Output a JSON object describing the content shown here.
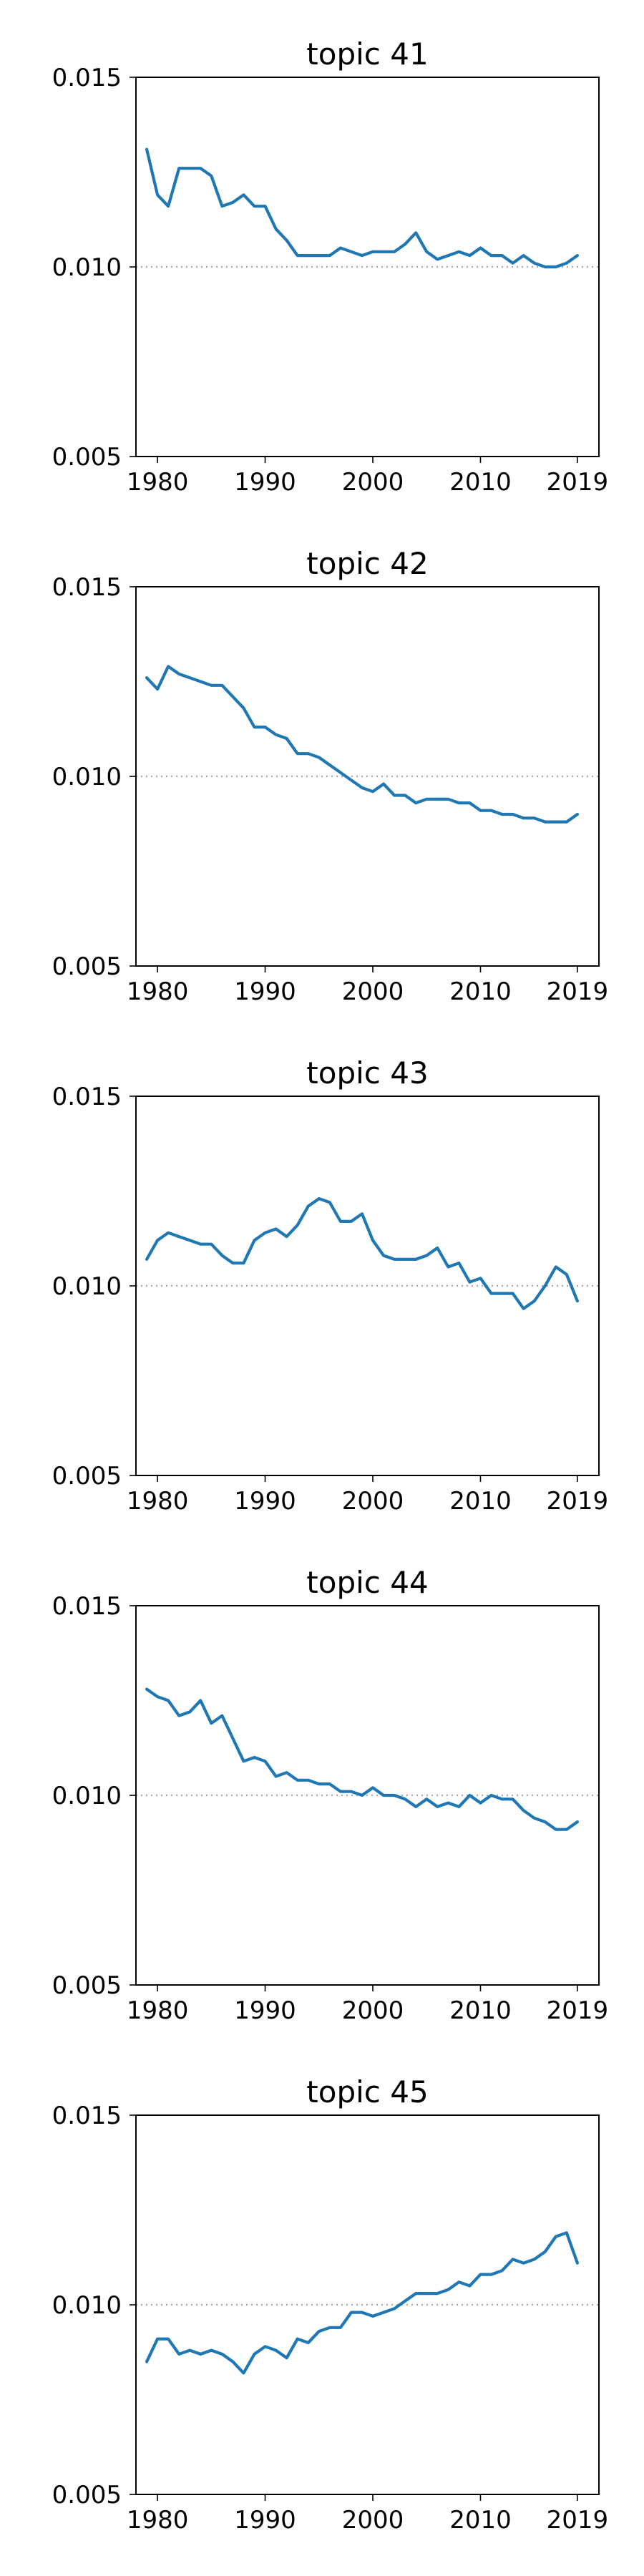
{
  "chart_data": [
    {
      "type": "line",
      "title": "topic 41",
      "xlim": [
        1978,
        2021
      ],
      "ylim": [
        0.005,
        0.015
      ],
      "xticks": [
        1980,
        1990,
        2000,
        2010,
        2019
      ],
      "yticks": [
        "0.005",
        "0.010",
        "0.015"
      ],
      "reference_line": 0.01,
      "grid": false,
      "color": "#1f77b4",
      "x": [
        1979,
        1980,
        1981,
        1982,
        1983,
        1984,
        1985,
        1986,
        1987,
        1988,
        1989,
        1990,
        1991,
        1992,
        1993,
        1994,
        1995,
        1996,
        1997,
        1998,
        1999,
        2000,
        2001,
        2002,
        2003,
        2004,
        2005,
        2006,
        2007,
        2008,
        2009,
        2010,
        2011,
        2012,
        2013,
        2014,
        2015,
        2016,
        2017,
        2018,
        2019
      ],
      "values": [
        0.0131,
        0.0119,
        0.0116,
        0.0126,
        0.0126,
        0.0126,
        0.0124,
        0.0116,
        0.0117,
        0.0119,
        0.0116,
        0.0116,
        0.011,
        0.0107,
        0.0103,
        0.0103,
        0.0103,
        0.0103,
        0.0105,
        0.0104,
        0.0103,
        0.0104,
        0.0104,
        0.0104,
        0.0106,
        0.0109,
        0.0104,
        0.0102,
        0.0103,
        0.0104,
        0.0103,
        0.0105,
        0.0103,
        0.0103,
        0.0101,
        0.0103,
        0.0101,
        0.01,
        0.01,
        0.0101,
        0.0103
      ]
    },
    {
      "type": "line",
      "title": "topic 42",
      "xlim": [
        1978,
        2021
      ],
      "ylim": [
        0.005,
        0.015
      ],
      "xticks": [
        1980,
        1990,
        2000,
        2010,
        2019
      ],
      "yticks": [
        "0.005",
        "0.010",
        "0.015"
      ],
      "reference_line": 0.01,
      "grid": false,
      "color": "#1f77b4",
      "x": [
        1979,
        1980,
        1981,
        1982,
        1983,
        1984,
        1985,
        1986,
        1987,
        1988,
        1989,
        1990,
        1991,
        1992,
        1993,
        1994,
        1995,
        1996,
        1997,
        1998,
        1999,
        2000,
        2001,
        2002,
        2003,
        2004,
        2005,
        2006,
        2007,
        2008,
        2009,
        2010,
        2011,
        2012,
        2013,
        2014,
        2015,
        2016,
        2017,
        2018,
        2019
      ],
      "values": [
        0.0126,
        0.0123,
        0.0129,
        0.0127,
        0.0126,
        0.0125,
        0.0124,
        0.0124,
        0.0121,
        0.0118,
        0.0113,
        0.0113,
        0.0111,
        0.011,
        0.0106,
        0.0106,
        0.0105,
        0.0103,
        0.0101,
        0.0099,
        0.0097,
        0.0096,
        0.0098,
        0.0095,
        0.0095,
        0.0093,
        0.0094,
        0.0094,
        0.0094,
        0.0093,
        0.0093,
        0.0091,
        0.0091,
        0.009,
        0.009,
        0.0089,
        0.0089,
        0.0088,
        0.0088,
        0.0088,
        0.009
      ]
    },
    {
      "type": "line",
      "title": "topic 43",
      "xlim": [
        1978,
        2021
      ],
      "ylim": [
        0.005,
        0.015
      ],
      "xticks": [
        1980,
        1990,
        2000,
        2010,
        2019
      ],
      "yticks": [
        "0.005",
        "0.010",
        "0.015"
      ],
      "reference_line": 0.01,
      "grid": false,
      "color": "#1f77b4",
      "x": [
        1979,
        1980,
        1981,
        1982,
        1983,
        1984,
        1985,
        1986,
        1987,
        1988,
        1989,
        1990,
        1991,
        1992,
        1993,
        1994,
        1995,
        1996,
        1997,
        1998,
        1999,
        2000,
        2001,
        2002,
        2003,
        2004,
        2005,
        2006,
        2007,
        2008,
        2009,
        2010,
        2011,
        2012,
        2013,
        2014,
        2015,
        2016,
        2017,
        2018,
        2019
      ],
      "values": [
        0.0107,
        0.0112,
        0.0114,
        0.0113,
        0.0112,
        0.0111,
        0.0111,
        0.0108,
        0.0106,
        0.0106,
        0.0112,
        0.0114,
        0.0115,
        0.0113,
        0.0116,
        0.0121,
        0.0123,
        0.0122,
        0.0117,
        0.0117,
        0.0119,
        0.0112,
        0.0108,
        0.0107,
        0.0107,
        0.0107,
        0.0108,
        0.011,
        0.0105,
        0.0106,
        0.0101,
        0.0102,
        0.0098,
        0.0098,
        0.0098,
        0.0094,
        0.0096,
        0.01,
        0.0105,
        0.0103,
        0.0096
      ]
    },
    {
      "type": "line",
      "title": "topic 44",
      "xlim": [
        1978,
        2021
      ],
      "ylim": [
        0.005,
        0.015
      ],
      "xticks": [
        1980,
        1990,
        2000,
        2010,
        2019
      ],
      "yticks": [
        "0.005",
        "0.010",
        "0.015"
      ],
      "reference_line": 0.01,
      "grid": false,
      "color": "#1f77b4",
      "x": [
        1979,
        1980,
        1981,
        1982,
        1983,
        1984,
        1985,
        1986,
        1987,
        1988,
        1989,
        1990,
        1991,
        1992,
        1993,
        1994,
        1995,
        1996,
        1997,
        1998,
        1999,
        2000,
        2001,
        2002,
        2003,
        2004,
        2005,
        2006,
        2007,
        2008,
        2009,
        2010,
        2011,
        2012,
        2013,
        2014,
        2015,
        2016,
        2017,
        2018,
        2019
      ],
      "values": [
        0.0128,
        0.0126,
        0.0125,
        0.0121,
        0.0122,
        0.0125,
        0.0119,
        0.0121,
        0.0115,
        0.0109,
        0.011,
        0.0109,
        0.0105,
        0.0106,
        0.0104,
        0.0104,
        0.0103,
        0.0103,
        0.0101,
        0.0101,
        0.01,
        0.0102,
        0.01,
        0.01,
        0.0099,
        0.0097,
        0.0099,
        0.0097,
        0.0098,
        0.0097,
        0.01,
        0.0098,
        0.01,
        0.0099,
        0.0099,
        0.0096,
        0.0094,
        0.0093,
        0.0091,
        0.0091,
        0.0093
      ]
    },
    {
      "type": "line",
      "title": "topic 45",
      "xlim": [
        1978,
        2021
      ],
      "ylim": [
        0.005,
        0.015
      ],
      "xticks": [
        1980,
        1990,
        2000,
        2010,
        2019
      ],
      "yticks": [
        "0.005",
        "0.010",
        "0.015"
      ],
      "reference_line": 0.01,
      "grid": false,
      "color": "#1f77b4",
      "x": [
        1979,
        1980,
        1981,
        1982,
        1983,
        1984,
        1985,
        1986,
        1987,
        1988,
        1989,
        1990,
        1991,
        1992,
        1993,
        1994,
        1995,
        1996,
        1997,
        1998,
        1999,
        2000,
        2001,
        2002,
        2003,
        2004,
        2005,
        2006,
        2007,
        2008,
        2009,
        2010,
        2011,
        2012,
        2013,
        2014,
        2015,
        2016,
        2017,
        2018,
        2019
      ],
      "values": [
        0.0085,
        0.0091,
        0.0091,
        0.0087,
        0.0088,
        0.0087,
        0.0088,
        0.0087,
        0.0085,
        0.0082,
        0.0087,
        0.0089,
        0.0088,
        0.0086,
        0.0091,
        0.009,
        0.0093,
        0.0094,
        0.0094,
        0.0098,
        0.0098,
        0.0097,
        0.0098,
        0.0099,
        0.0101,
        0.0103,
        0.0103,
        0.0103,
        0.0104,
        0.0106,
        0.0105,
        0.0108,
        0.0108,
        0.0109,
        0.0112,
        0.0111,
        0.0112,
        0.0114,
        0.0118,
        0.0119,
        0.0111
      ]
    }
  ]
}
